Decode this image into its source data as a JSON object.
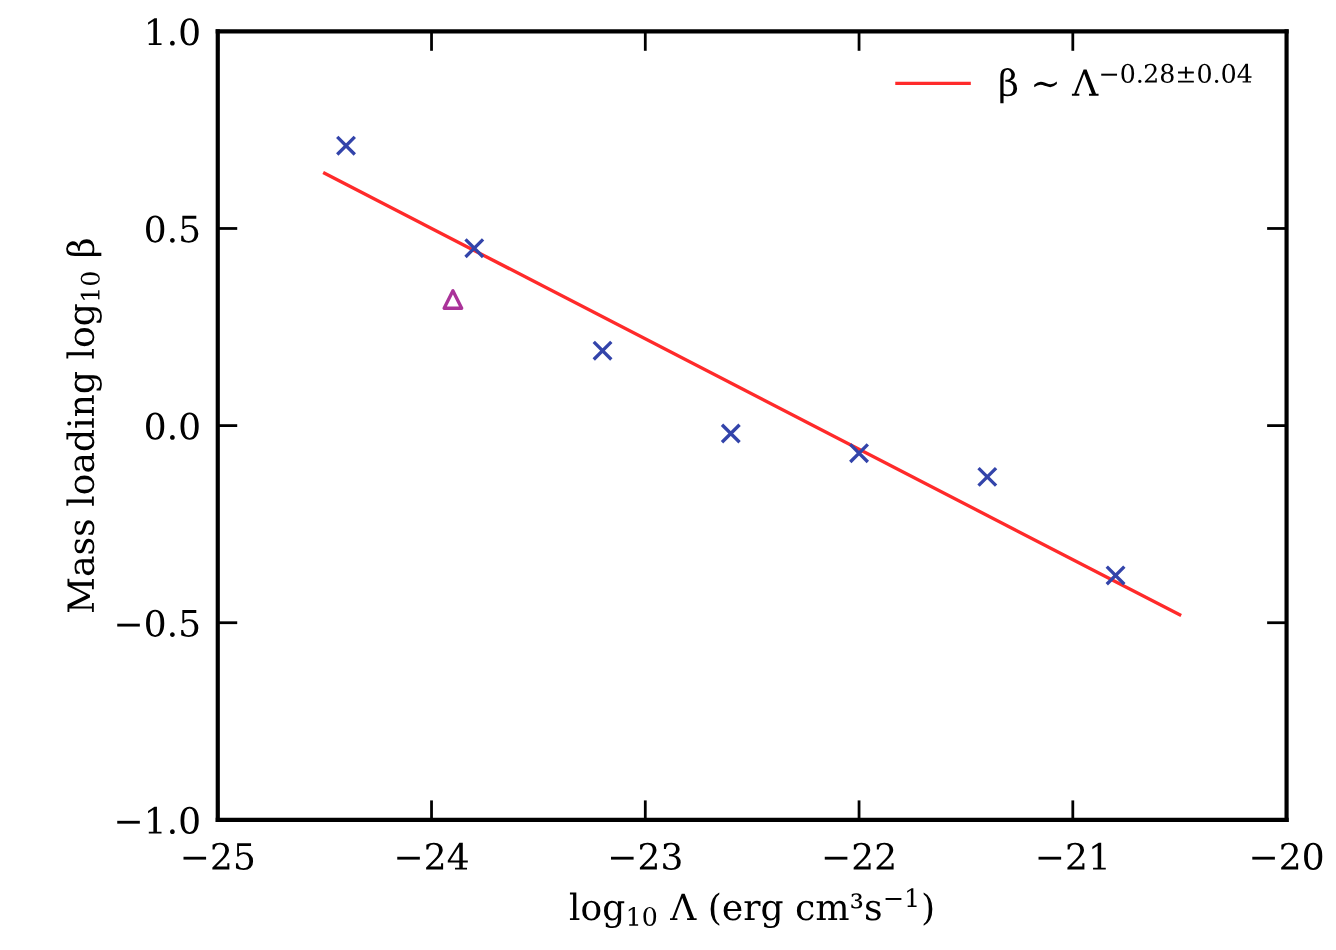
{
  "chart_data": {
    "type": "scatter",
    "xlabel": "log$_{10}$ Λ (erg cm³s$^{−1}$)",
    "ylabel": "Mass loading log$_{10}$ β",
    "xlim": [
      -25,
      -20
    ],
    "ylim": [
      -1.0,
      1.0
    ],
    "xticks": [
      {
        "value": -25,
        "label": "−25"
      },
      {
        "value": -24,
        "label": "−24"
      },
      {
        "value": -23,
        "label": "−23"
      },
      {
        "value": -22,
        "label": "−22"
      },
      {
        "value": -21,
        "label": "−21"
      },
      {
        "value": -20,
        "label": "−20"
      }
    ],
    "yticks": [
      {
        "value": -1.0,
        "label": "−1.0"
      },
      {
        "value": -0.5,
        "label": "−0.5"
      },
      {
        "value": 0.0,
        "label": "0.0"
      },
      {
        "value": 0.5,
        "label": "0.5"
      },
      {
        "value": 1.0,
        "label": "1.0"
      }
    ],
    "grid": false,
    "legend": "top right",
    "series": [
      {
        "marker": "cross",
        "color": "#3344aa",
        "x": [
          -24.4,
          -23.8,
          -23.2,
          -22.6,
          -22.0,
          -21.4,
          -20.8
        ],
        "values": [
          0.71,
          0.45,
          0.19,
          -0.02,
          -0.07,
          -0.13,
          -0.38
        ]
      },
      {
        "marker": "triangle",
        "color": "#aa3399",
        "x": [
          -23.9
        ],
        "values": [
          0.32
        ]
      },
      {
        "type": "line",
        "name": "β ∼ Λ$^{−0.28±0.04}$",
        "color": "#ff2a2a",
        "line_style": "solid",
        "x": [
          -24.5,
          -20.5
        ],
        "values": [
          0.64,
          -0.48
        ]
      }
    ]
  }
}
